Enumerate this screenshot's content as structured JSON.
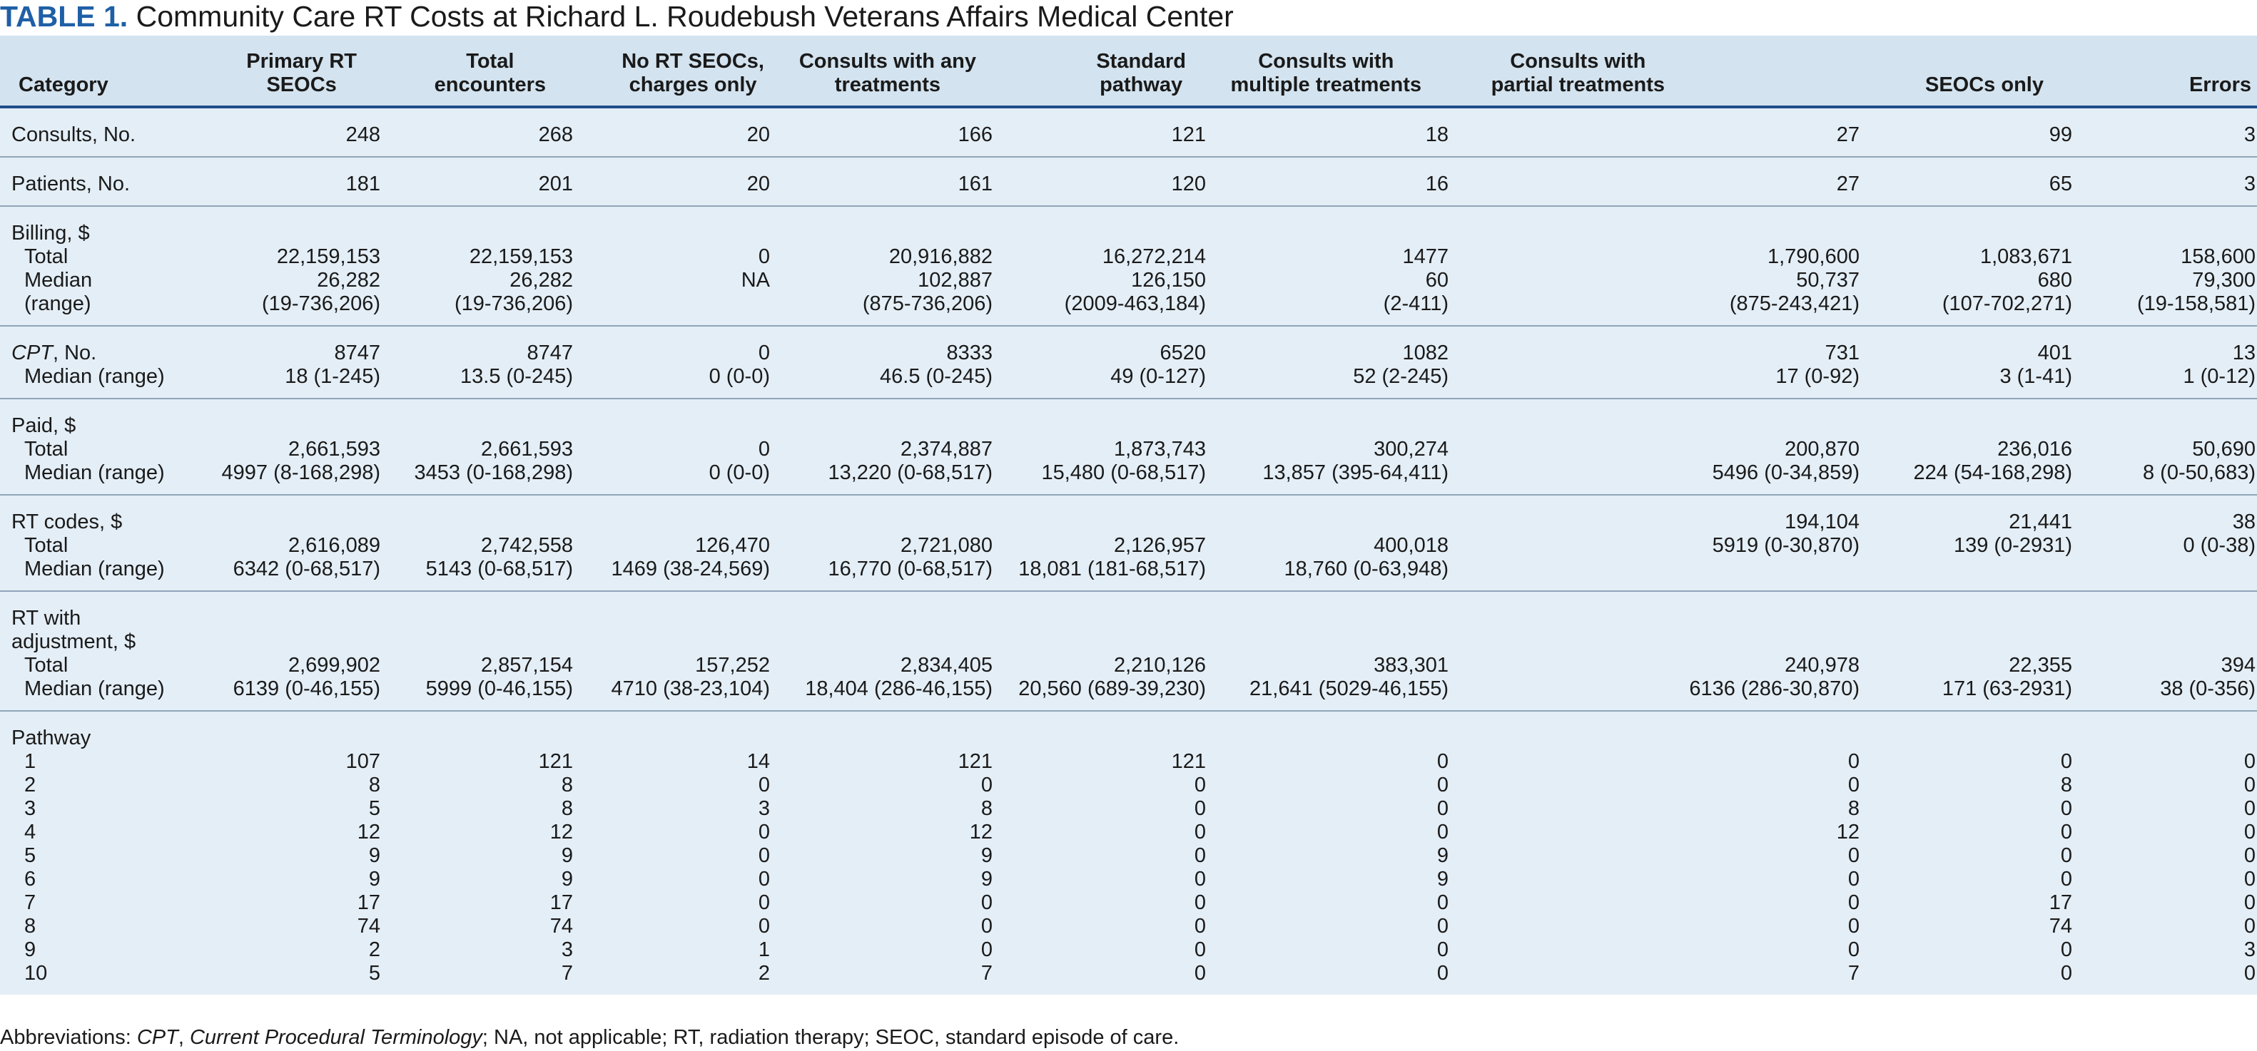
{
  "title": {
    "label": "TABLE 1.",
    "text": "Community Care RT Costs at  Richard L. Roudebush Veterans Affairs Medical Center"
  },
  "headers": [
    [
      "Category"
    ],
    [
      "Primary RT",
      "SEOCs"
    ],
    [
      "Total",
      "encounters"
    ],
    [
      "No RT SEOCs,",
      "charges only"
    ],
    [
      "Consults with any",
      "treatments"
    ],
    [
      "Standard",
      "pathway"
    ],
    [
      "Consults with",
      "multiple treatments"
    ],
    [
      "Consults with",
      "partial treatments"
    ],
    [
      "SEOCs only"
    ],
    [
      "Errors"
    ]
  ],
  "sections": [
    {
      "labels": [
        {
          "t": "Consults, No.",
          "i": false
        }
      ],
      "cols": [
        [
          "248"
        ],
        [
          "268"
        ],
        [
          "20"
        ],
        [
          "166"
        ],
        [
          "121"
        ],
        [
          "18"
        ],
        [
          "27"
        ],
        [
          "99"
        ],
        [
          "3"
        ]
      ]
    },
    {
      "labels": [
        {
          "t": "Patients, No.",
          "i": false
        }
      ],
      "cols": [
        [
          "181"
        ],
        [
          "201"
        ],
        [
          "20"
        ],
        [
          "161"
        ],
        [
          "120"
        ],
        [
          "16"
        ],
        [
          "27"
        ],
        [
          "65"
        ],
        [
          "3"
        ]
      ]
    },
    {
      "labels": [
        {
          "t": "Billing, $",
          "i": false
        },
        {
          "t": "Total",
          "i": true
        },
        {
          "t": "Median",
          "i": true
        },
        {
          "t": "(range)",
          "i": true
        }
      ],
      "cols": [
        [
          "",
          "22,159,153",
          "26,282",
          "(19-736,206)"
        ],
        [
          "",
          "22,159,153",
          "26,282",
          "(19-736,206)"
        ],
        [
          "",
          "0",
          "NA",
          ""
        ],
        [
          "",
          "20,916,882",
          "102,887",
          "(875-736,206)"
        ],
        [
          "",
          "16,272,214",
          "126,150",
          "(2009-463,184)"
        ],
        [
          "",
          "1477",
          "60",
          "(2-411)"
        ],
        [
          "",
          "1,790,600",
          "50,737",
          "(875-243,421)"
        ],
        [
          "",
          "1,083,671",
          "680",
          "(107-702,271)"
        ],
        [
          "",
          "158,600",
          "79,300",
          "(19-158,581)"
        ]
      ]
    },
    {
      "labels": [
        {
          "t": "CPT",
          "suffix": ", No.",
          "em": true,
          "i": false
        },
        {
          "t": "Median (range)",
          "i": true
        }
      ],
      "cols": [
        [
          "8747",
          "18 (1-245)"
        ],
        [
          "8747",
          "13.5 (0-245)"
        ],
        [
          "0",
          "0 (0-0)"
        ],
        [
          "8333",
          "46.5 (0-245)"
        ],
        [
          "6520",
          "49 (0-127)"
        ],
        [
          "1082",
          "52 (2-245)"
        ],
        [
          "731",
          "17 (0-92)"
        ],
        [
          "401",
          "3 (1-41)"
        ],
        [
          "13",
          "1 (0-12)"
        ]
      ]
    },
    {
      "labels": [
        {
          "t": "Paid, $",
          "i": false
        },
        {
          "t": "Total",
          "i": true
        },
        {
          "t": "Median (range)",
          "i": true
        }
      ],
      "cols": [
        [
          "",
          "2,661,593",
          "4997 (8-168,298)"
        ],
        [
          "",
          "2,661,593",
          "3453 (0-168,298)"
        ],
        [
          "",
          "0",
          "0 (0-0)"
        ],
        [
          "",
          "2,374,887",
          "13,220 (0-68,517)"
        ],
        [
          "",
          "1,873,743",
          "15,480 (0-68,517)"
        ],
        [
          "",
          "300,274",
          "13,857 (395-64,411)"
        ],
        [
          "",
          "200,870",
          "5496 (0-34,859)"
        ],
        [
          "",
          "236,016",
          "224 (54-168,298)"
        ],
        [
          "",
          "50,690",
          "8 (0-50,683)"
        ]
      ]
    },
    {
      "labels": [
        {
          "t": "RT codes, $",
          "i": false
        },
        {
          "t": "Total",
          "i": true
        },
        {
          "t": "Median (range)",
          "i": true
        }
      ],
      "cols": [
        [
          "",
          "2,616,089",
          "6342 (0-68,517)"
        ],
        [
          "",
          "2,742,558",
          "5143 (0-68,517)"
        ],
        [
          "",
          "126,470",
          "1469 (38-24,569)"
        ],
        [
          "",
          "2,721,080",
          "16,770 (0-68,517)"
        ],
        [
          "",
          "2,126,957",
          "18,081 (181-68,517)"
        ],
        [
          "",
          "400,018",
          "18,760 (0-63,948)"
        ],
        [
          "194,104",
          "5919 (0-30,870)",
          ""
        ],
        [
          "21,441",
          "139 (0-2931)",
          ""
        ],
        [
          "38",
          "0 (0-38)",
          ""
        ]
      ]
    },
    {
      "labels": [
        {
          "t": "RT with",
          "i": false
        },
        {
          "t": "adjustment, $",
          "i": false
        },
        {
          "t": "Total",
          "i": true
        },
        {
          "t": "Median (range)",
          "i": true
        }
      ],
      "cols": [
        [
          "",
          "",
          "2,699,902",
          "6139 (0-46,155)"
        ],
        [
          "",
          "",
          "2,857,154",
          "5999 (0-46,155)"
        ],
        [
          "",
          "",
          "157,252",
          "4710 (38-23,104)"
        ],
        [
          "",
          "",
          "2,834,405",
          "18,404 (286-46,155)"
        ],
        [
          "",
          "",
          "2,210,126",
          "20,560 (689-39,230)"
        ],
        [
          "",
          "",
          "383,301",
          "21,641 (5029-46,155)"
        ],
        [
          "",
          "",
          "240,978",
          "6136 (286-30,870)"
        ],
        [
          "",
          "",
          "22,355",
          "171 (63-2931)"
        ],
        [
          "",
          "",
          "394",
          "38 (0-356)"
        ]
      ]
    },
    {
      "labels": [
        {
          "t": "Pathway",
          "i": false
        },
        {
          "t": "1",
          "i": true
        },
        {
          "t": "2",
          "i": true
        },
        {
          "t": "3",
          "i": true
        },
        {
          "t": "4",
          "i": true
        },
        {
          "t": "5",
          "i": true
        },
        {
          "t": "6",
          "i": true
        },
        {
          "t": "7",
          "i": true
        },
        {
          "t": "8",
          "i": true
        },
        {
          "t": "9",
          "i": true
        },
        {
          "t": "10",
          "i": true
        }
      ],
      "cols": [
        [
          "",
          "107",
          "8",
          "5",
          "12",
          "9",
          "9",
          "17",
          "74",
          "2",
          "5"
        ],
        [
          "",
          "121",
          "8",
          "8",
          "12",
          "9",
          "9",
          "17",
          "74",
          "3",
          "7"
        ],
        [
          "",
          "14",
          "0",
          "3",
          "0",
          "0",
          "0",
          "0",
          "0",
          "1",
          "2"
        ],
        [
          "",
          "121",
          "0",
          "8",
          "12",
          "9",
          "9",
          "0",
          "0",
          "0",
          "7"
        ],
        [
          "",
          "121",
          "0",
          "0",
          "0",
          "0",
          "0",
          "0",
          "0",
          "0",
          "0"
        ],
        [
          "",
          "0",
          "0",
          "0",
          "0",
          "9",
          "9",
          "0",
          "0",
          "0",
          "0"
        ],
        [
          "",
          "0",
          "0",
          "8",
          "12",
          "0",
          "0",
          "0",
          "0",
          "0",
          "7"
        ],
        [
          "",
          "0",
          "8",
          "0",
          "0",
          "0",
          "0",
          "17",
          "74",
          "0",
          "0"
        ],
        [
          "",
          "0",
          "0",
          "0",
          "0",
          "0",
          "0",
          "0",
          "0",
          "3",
          "0"
        ]
      ]
    }
  ],
  "footnote": {
    "prefix": "Abbreviations: ",
    "cpt": "CPT",
    "sep1": ", ",
    "cpt_full": "Current Procedural Terminology",
    "rest": "; NA, not applicable; RT, radiation therapy; SEOC, standard episode of care."
  }
}
